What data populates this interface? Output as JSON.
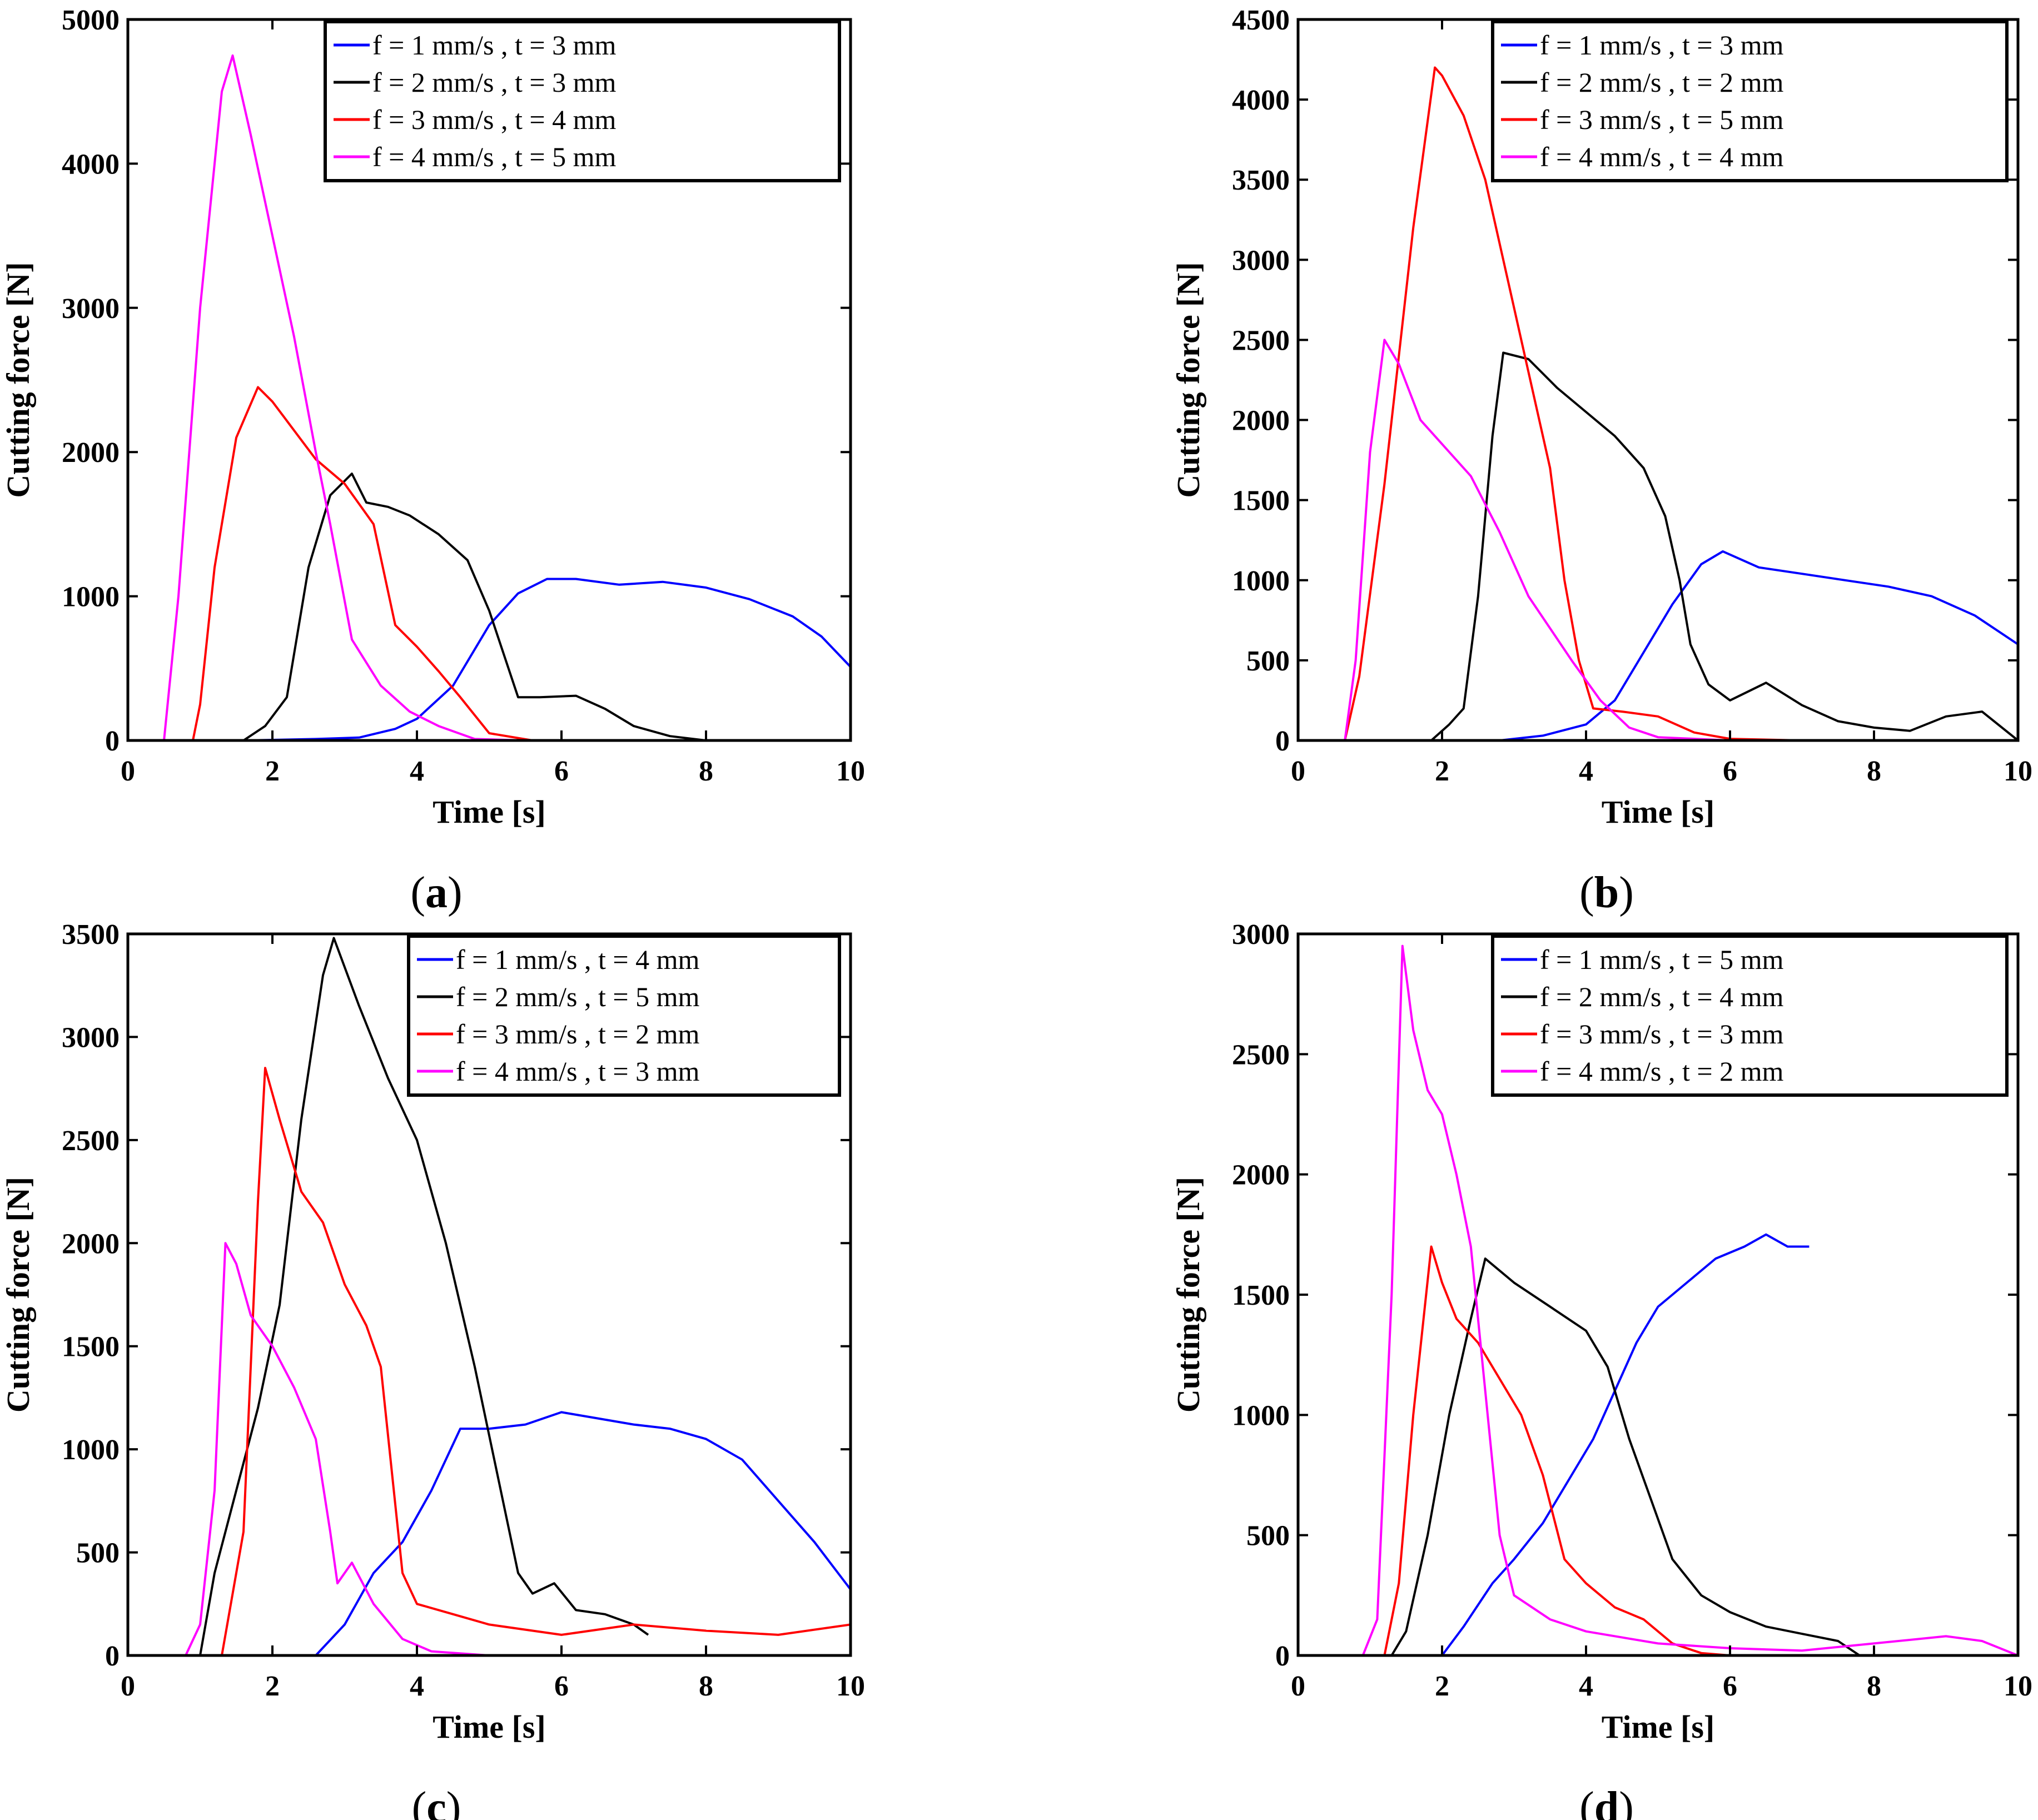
{
  "figure": {
    "panels": [
      {
        "id": "a",
        "label": "a"
      },
      {
        "id": "b",
        "label": "b"
      },
      {
        "id": "c",
        "label": "c"
      },
      {
        "id": "d",
        "label": "d"
      }
    ]
  },
  "chart_data": [
    {
      "type": "line",
      "panel": "a",
      "xlabel": "Time [s]",
      "ylabel": "Cutting force [N]",
      "xlim": [
        0,
        10
      ],
      "ylim": [
        0,
        5000
      ],
      "xticks": [
        0,
        2,
        4,
        6,
        8,
        10
      ],
      "yticks": [
        0,
        1000,
        2000,
        3000,
        4000,
        5000
      ],
      "legend_position": "top-right",
      "series": [
        {
          "name": "f = 1 mm/s , t = 3 mm",
          "color": "#0000ff",
          "x": [
            0,
            1.6,
            2.6,
            3.2,
            3.7,
            4.0,
            4.5,
            5.0,
            5.4,
            5.8,
            6.2,
            6.8,
            7.4,
            8.0,
            8.6,
            9.2,
            9.6,
            10.0
          ],
          "y": [
            0,
            0,
            10,
            20,
            80,
            150,
            380,
            800,
            1020,
            1120,
            1120,
            1080,
            1100,
            1060,
            980,
            860,
            720,
            510
          ]
        },
        {
          "name": "f = 2 mm/s , t = 3 mm",
          "color": "#000000",
          "x": [
            0,
            1.6,
            1.9,
            2.2,
            2.5,
            2.8,
            3.1,
            3.3,
            3.6,
            3.9,
            4.3,
            4.7,
            5.0,
            5.2,
            5.4,
            5.7,
            6.2,
            6.6,
            7.0,
            7.5,
            8.0,
            10.0
          ],
          "y": [
            0,
            0,
            100,
            300,
            1200,
            1700,
            1850,
            1650,
            1620,
            1560,
            1430,
            1250,
            900,
            600,
            300,
            300,
            310,
            220,
            100,
            30,
            0,
            0
          ]
        },
        {
          "name": "f = 3 mm/s , t = 4 mm",
          "color": "#ff0000",
          "x": [
            0,
            0.9,
            1.0,
            1.2,
            1.5,
            1.8,
            2.0,
            2.3,
            2.6,
            3.0,
            3.4,
            3.7,
            4.0,
            4.3,
            4.6,
            5.0,
            5.6
          ],
          "y": [
            0,
            0,
            250,
            1200,
            2100,
            2450,
            2350,
            2150,
            1950,
            1780,
            1500,
            800,
            650,
            480,
            300,
            50,
            0
          ]
        },
        {
          "name": "f = 4 mm/s , t = 5 mm",
          "color": "#ff00ff",
          "x": [
            0,
            0.5,
            0.7,
            1.0,
            1.3,
            1.45,
            1.7,
            2.0,
            2.3,
            2.6,
            2.8,
            3.1,
            3.5,
            3.9,
            4.3,
            4.8,
            5.5
          ],
          "y": [
            0,
            0,
            1000,
            3000,
            4500,
            4750,
            4200,
            3500,
            2800,
            2000,
            1500,
            700,
            380,
            200,
            100,
            10,
            0
          ]
        }
      ]
    },
    {
      "type": "line",
      "panel": "b",
      "xlabel": "Time [s]",
      "ylabel": "Cutting force [N]",
      "xlim": [
        0,
        10
      ],
      "ylim": [
        0,
        4500
      ],
      "xticks": [
        0,
        2,
        4,
        6,
        8,
        10
      ],
      "yticks": [
        0,
        500,
        1000,
        1500,
        2000,
        2500,
        3000,
        3500,
        4000,
        4500
      ],
      "legend_position": "top-right",
      "series": [
        {
          "name": "f = 1 mm/s , t = 3 mm",
          "color": "#0000ff",
          "x": [
            0,
            2.8,
            3.4,
            4.0,
            4.4,
            4.8,
            5.2,
            5.6,
            5.9,
            6.4,
            7.0,
            7.6,
            8.2,
            8.8,
            9.4,
            10.0
          ],
          "y": [
            0,
            0,
            30,
            100,
            250,
            550,
            850,
            1100,
            1180,
            1080,
            1040,
            1000,
            960,
            900,
            780,
            600
          ]
        },
        {
          "name": "f = 2 mm/s , t = 2 mm",
          "color": "#000000",
          "x": [
            0,
            1.85,
            2.1,
            2.3,
            2.5,
            2.7,
            2.85,
            3.2,
            3.6,
            4.0,
            4.4,
            4.8,
            5.1,
            5.3,
            5.45,
            5.7,
            6.0,
            6.5,
            7.0,
            7.5,
            8.0,
            8.5,
            9.0,
            9.5,
            10.0
          ],
          "y": [
            0,
            0,
            100,
            200,
            900,
            1900,
            2420,
            2380,
            2200,
            2050,
            1900,
            1700,
            1400,
            1000,
            600,
            350,
            250,
            360,
            220,
            120,
            80,
            60,
            150,
            180,
            0
          ]
        },
        {
          "name": "f = 3 mm/s , t = 5 mm",
          "color": "#ff0000",
          "x": [
            0,
            0.65,
            0.85,
            1.2,
            1.6,
            1.9,
            2.0,
            2.3,
            2.6,
            2.9,
            3.2,
            3.5,
            3.7,
            3.9,
            4.1,
            4.5,
            5.0,
            5.5,
            6.0,
            7.0
          ],
          "y": [
            0,
            0,
            400,
            1600,
            3200,
            4200,
            4150,
            3900,
            3500,
            2900,
            2300,
            1700,
            1000,
            500,
            200,
            180,
            150,
            50,
            10,
            0
          ]
        },
        {
          "name": "f = 4 mm/s , t = 4 mm",
          "color": "#ff00ff",
          "x": [
            0,
            0.65,
            0.8,
            1.0,
            1.2,
            1.4,
            1.7,
            2.0,
            2.4,
            2.8,
            3.2,
            3.5,
            3.8,
            4.2,
            4.6,
            5.0,
            6.0,
            9.0
          ],
          "y": [
            0,
            0,
            500,
            1800,
            2500,
            2350,
            2000,
            1850,
            1650,
            1300,
            900,
            700,
            500,
            250,
            80,
            20,
            0,
            0
          ]
        }
      ]
    },
    {
      "type": "line",
      "panel": "c",
      "xlabel": "Time [s]",
      "ylabel": "Cutting force [N]",
      "xlim": [
        0,
        10
      ],
      "ylim": [
        0,
        3500
      ],
      "xticks": [
        0,
        2,
        4,
        6,
        8,
        10
      ],
      "yticks": [
        0,
        500,
        1000,
        1500,
        2000,
        2500,
        3000,
        3500
      ],
      "legend_position": "top-right",
      "series": [
        {
          "name": "f = 1 mm/s , t = 4 mm",
          "color": "#0000ff",
          "x": [
            0,
            2.6,
            3.0,
            3.4,
            3.8,
            4.2,
            4.6,
            5.0,
            5.5,
            6.0,
            6.5,
            7.0,
            7.5,
            8.0,
            8.5,
            9.0,
            9.5,
            10.0
          ],
          "y": [
            0,
            0,
            150,
            400,
            550,
            800,
            1100,
            1100,
            1120,
            1180,
            1150,
            1120,
            1100,
            1050,
            950,
            750,
            550,
            320
          ]
        },
        {
          "name": "f = 2 mm/s , t = 5 mm",
          "color": "#000000",
          "x": [
            0,
            1.0,
            1.2,
            1.5,
            1.8,
            2.1,
            2.4,
            2.7,
            2.85,
            3.2,
            3.6,
            4.0,
            4.4,
            4.8,
            5.1,
            5.4,
            5.6,
            5.9,
            6.2,
            6.6,
            7.0,
            7.2
          ],
          "y": [
            0,
            0,
            400,
            800,
            1200,
            1700,
            2600,
            3300,
            3480,
            3150,
            2800,
            2500,
            2000,
            1400,
            900,
            400,
            300,
            350,
            220,
            200,
            150,
            100
          ]
        },
        {
          "name": "f = 3 mm/s , t = 2 mm",
          "color": "#ff0000",
          "x": [
            0,
            1.3,
            1.6,
            1.8,
            1.9,
            2.1,
            2.4,
            2.7,
            3.0,
            3.3,
            3.5,
            3.65,
            3.8,
            4.0,
            4.5,
            5.0,
            6.0,
            7.0,
            8.0,
            9.0,
            10.0
          ],
          "y": [
            0,
            0,
            600,
            2200,
            2850,
            2600,
            2250,
            2100,
            1800,
            1600,
            1400,
            900,
            400,
            250,
            200,
            150,
            100,
            150,
            120,
            100,
            150
          ]
        },
        {
          "name": "f = 4 mm/s , t = 3 mm",
          "color": "#ff00ff",
          "x": [
            0,
            0.8,
            1.0,
            1.2,
            1.35,
            1.5,
            1.7,
            2.0,
            2.3,
            2.6,
            2.8,
            2.9,
            3.1,
            3.4,
            3.8,
            4.2,
            5.0,
            6.0
          ],
          "y": [
            0,
            0,
            150,
            800,
            2000,
            1900,
            1650,
            1500,
            1300,
            1050,
            600,
            350,
            450,
            250,
            80,
            20,
            0,
            0
          ]
        }
      ]
    },
    {
      "type": "line",
      "panel": "d",
      "xlabel": "Time [s]",
      "ylabel": "Cutting force [N]",
      "xlim": [
        0,
        10
      ],
      "ylim": [
        0,
        3000
      ],
      "xticks": [
        0,
        2,
        4,
        6,
        8,
        10
      ],
      "yticks": [
        0,
        500,
        1000,
        1500,
        2000,
        2500,
        3000
      ],
      "legend_position": "top-right",
      "series": [
        {
          "name": "f = 1 mm/s , t = 5 mm",
          "color": "#0000ff",
          "x": [
            0,
            2.0,
            2.3,
            2.7,
            3.0,
            3.4,
            3.8,
            4.1,
            4.4,
            4.7,
            5.0,
            5.4,
            5.8,
            6.2,
            6.5,
            6.8,
            7.1
          ],
          "y": [
            0,
            0,
            120,
            300,
            400,
            550,
            750,
            900,
            1100,
            1300,
            1450,
            1550,
            1650,
            1700,
            1750,
            1700,
            1700
          ]
        },
        {
          "name": "f = 2 mm/s , t = 4 mm",
          "color": "#000000",
          "x": [
            0,
            1.3,
            1.5,
            1.8,
            2.1,
            2.4,
            2.6,
            3.0,
            3.5,
            4.0,
            4.3,
            4.6,
            4.9,
            5.2,
            5.6,
            6.0,
            6.5,
            7.0,
            7.5,
            7.8
          ],
          "y": [
            0,
            0,
            100,
            500,
            1000,
            1400,
            1650,
            1550,
            1450,
            1350,
            1200,
            900,
            650,
            400,
            250,
            180,
            120,
            90,
            60,
            0
          ]
        },
        {
          "name": "f = 3 mm/s , t = 3 mm",
          "color": "#ff0000",
          "x": [
            0,
            1.2,
            1.4,
            1.6,
            1.85,
            2.0,
            2.2,
            2.5,
            2.8,
            3.1,
            3.4,
            3.7,
            4.0,
            4.4,
            4.8,
            5.2,
            5.6,
            6.0
          ],
          "y": [
            0,
            0,
            300,
            1000,
            1700,
            1550,
            1400,
            1300,
            1150,
            1000,
            750,
            400,
            300,
            200,
            150,
            50,
            10,
            0
          ]
        },
        {
          "name": "f = 4 mm/s , t = 2 mm",
          "color": "#ff00ff",
          "x": [
            0,
            0.9,
            1.1,
            1.3,
            1.45,
            1.6,
            1.8,
            2.0,
            2.2,
            2.4,
            2.6,
            2.8,
            3.0,
            3.5,
            4.0,
            5.0,
            6.0,
            7.0,
            8.0,
            9.0,
            9.5,
            10.0
          ],
          "y": [
            0,
            0,
            150,
            1500,
            2950,
            2600,
            2350,
            2250,
            2000,
            1700,
            1100,
            500,
            250,
            150,
            100,
            50,
            30,
            20,
            50,
            80,
            60,
            0
          ]
        }
      ]
    }
  ]
}
